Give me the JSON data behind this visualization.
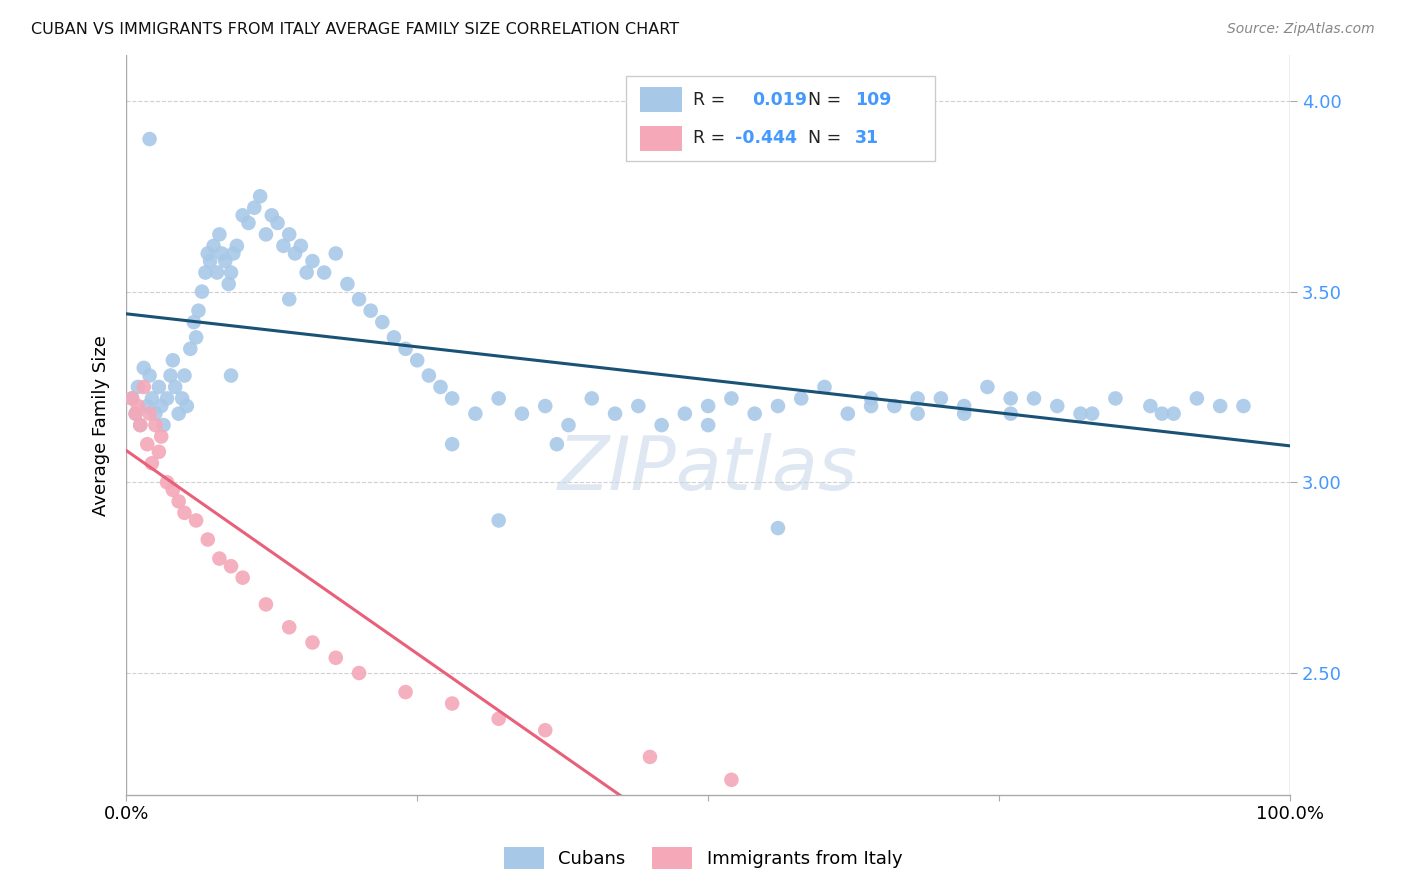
{
  "title": "CUBAN VS IMMIGRANTS FROM ITALY AVERAGE FAMILY SIZE CORRELATION CHART",
  "source": "Source: ZipAtlas.com",
  "ylabel": "Average Family Size",
  "xlim": [
    0.0,
    1.0
  ],
  "ylim": [
    2.18,
    4.12
  ],
  "yticks": [
    2.5,
    3.0,
    3.5,
    4.0
  ],
  "blue_color": "#a8c8e8",
  "pink_color": "#f4a8b8",
  "blue_line_color": "#1a5276",
  "pink_line_color": "#e8607a",
  "blue_R": 0.019,
  "blue_N": 109,
  "pink_R": -0.444,
  "pink_N": 31,
  "blue_x": [
    0.005,
    0.008,
    0.01,
    0.012,
    0.015,
    0.018,
    0.02,
    0.022,
    0.025,
    0.028,
    0.03,
    0.032,
    0.035,
    0.038,
    0.04,
    0.042,
    0.045,
    0.048,
    0.05,
    0.052,
    0.055,
    0.058,
    0.06,
    0.062,
    0.065,
    0.068,
    0.07,
    0.072,
    0.075,
    0.078,
    0.08,
    0.082,
    0.085,
    0.088,
    0.09,
    0.092,
    0.095,
    0.1,
    0.105,
    0.11,
    0.115,
    0.12,
    0.125,
    0.13,
    0.135,
    0.14,
    0.145,
    0.15,
    0.155,
    0.16,
    0.17,
    0.18,
    0.19,
    0.2,
    0.21,
    0.22,
    0.23,
    0.24,
    0.25,
    0.26,
    0.27,
    0.28,
    0.3,
    0.32,
    0.34,
    0.36,
    0.38,
    0.4,
    0.42,
    0.44,
    0.46,
    0.48,
    0.5,
    0.52,
    0.54,
    0.56,
    0.58,
    0.6,
    0.62,
    0.64,
    0.66,
    0.68,
    0.7,
    0.72,
    0.74,
    0.76,
    0.78,
    0.8,
    0.82,
    0.85,
    0.88,
    0.9,
    0.92,
    0.94,
    0.02,
    0.09,
    0.14,
    0.28,
    0.32,
    0.37,
    0.5,
    0.56,
    0.64,
    0.68,
    0.72,
    0.76,
    0.83,
    0.89,
    0.96
  ],
  "blue_y": [
    3.22,
    3.18,
    3.25,
    3.15,
    3.3,
    3.2,
    3.28,
    3.22,
    3.18,
    3.25,
    3.2,
    3.15,
    3.22,
    3.28,
    3.32,
    3.25,
    3.18,
    3.22,
    3.28,
    3.2,
    3.35,
    3.42,
    3.38,
    3.45,
    3.5,
    3.55,
    3.6,
    3.58,
    3.62,
    3.55,
    3.65,
    3.6,
    3.58,
    3.52,
    3.55,
    3.6,
    3.62,
    3.7,
    3.68,
    3.72,
    3.75,
    3.65,
    3.7,
    3.68,
    3.62,
    3.65,
    3.6,
    3.62,
    3.55,
    3.58,
    3.55,
    3.6,
    3.52,
    3.48,
    3.45,
    3.42,
    3.38,
    3.35,
    3.32,
    3.28,
    3.25,
    3.22,
    3.18,
    3.22,
    3.18,
    3.2,
    3.15,
    3.22,
    3.18,
    3.2,
    3.15,
    3.18,
    3.2,
    3.22,
    3.18,
    3.2,
    3.22,
    3.25,
    3.18,
    3.22,
    3.2,
    3.18,
    3.22,
    3.2,
    3.25,
    3.18,
    3.22,
    3.2,
    3.18,
    3.22,
    3.2,
    3.18,
    3.22,
    3.2,
    3.9,
    3.28,
    3.48,
    3.1,
    2.9,
    3.1,
    3.15,
    2.88,
    3.2,
    3.22,
    3.18,
    3.22,
    3.18,
    3.18,
    3.2
  ],
  "pink_x": [
    0.005,
    0.008,
    0.01,
    0.012,
    0.015,
    0.018,
    0.02,
    0.022,
    0.025,
    0.028,
    0.03,
    0.035,
    0.04,
    0.045,
    0.05,
    0.06,
    0.07,
    0.08,
    0.09,
    0.1,
    0.12,
    0.14,
    0.16,
    0.18,
    0.2,
    0.24,
    0.28,
    0.32,
    0.36,
    0.45,
    0.52
  ],
  "pink_y": [
    3.22,
    3.18,
    3.2,
    3.15,
    3.25,
    3.1,
    3.18,
    3.05,
    3.15,
    3.08,
    3.12,
    3.0,
    2.98,
    2.95,
    2.92,
    2.9,
    2.85,
    2.8,
    2.78,
    2.75,
    2.68,
    2.62,
    2.58,
    2.54,
    2.5,
    2.45,
    2.42,
    2.38,
    2.35,
    2.28,
    2.22
  ],
  "watermark": "ZIPatlas",
  "bg_color": "#ffffff",
  "grid_color": "#d0d0d0"
}
